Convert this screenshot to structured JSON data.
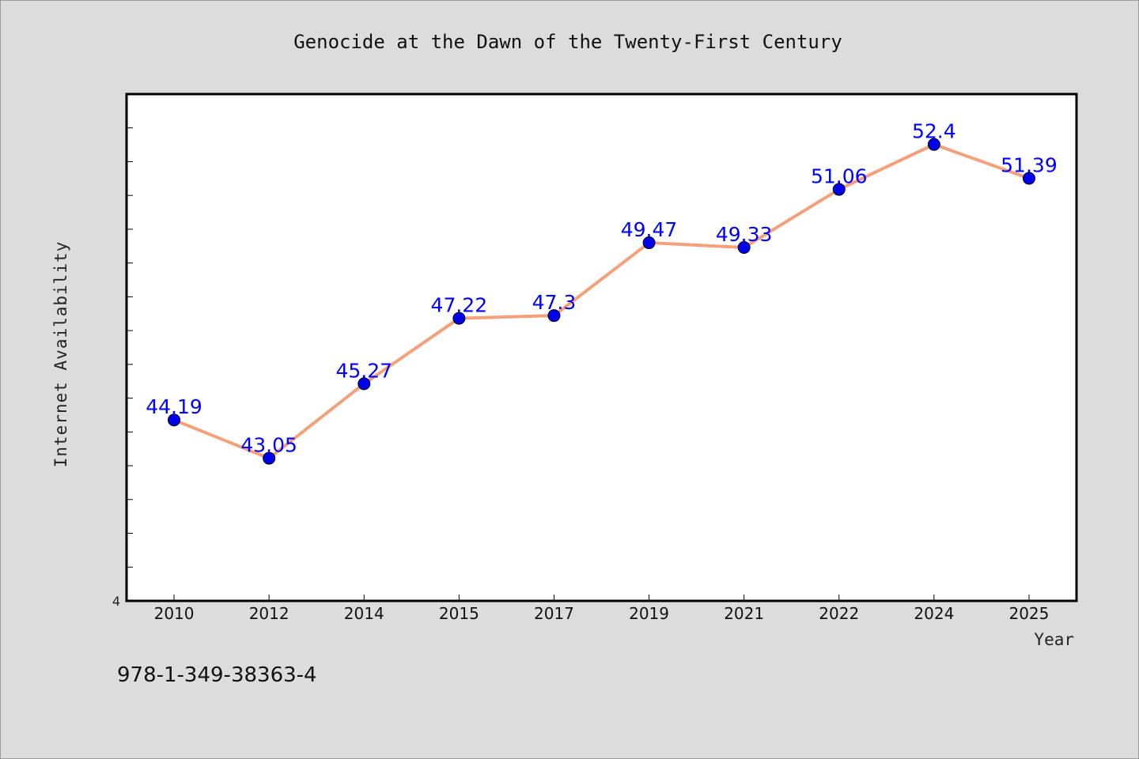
{
  "chart_data": {
    "type": "line",
    "title": "Genocide at the Dawn of the Twenty-First Century",
    "xlabel": "Year",
    "ylabel": "Internet Availability",
    "categories": [
      "2010",
      "2012",
      "2014",
      "2015",
      "2017",
      "2019",
      "2021",
      "2022",
      "2024",
      "2025"
    ],
    "series": [
      {
        "values": [
          44.19,
          43.05,
          45.27,
          47.22,
          47.3,
          49.47,
          49.33,
          51.06,
          52.4,
          51.39
        ],
        "labels": [
          "44.19",
          "43.05",
          "45.27",
          "47.22",
          "47.3",
          "49.47",
          "49.33",
          "51.06",
          "52.4",
          "51.39"
        ]
      }
    ],
    "y_tick_label": "4",
    "ylim": [
      38.8,
      53.9
    ],
    "grid": false,
    "legend": "none",
    "colors": {
      "line": "#f4a07a",
      "marker": "#0000ee",
      "data_label": "#0000ff",
      "plot_background": "#ffffff",
      "page_background": "#dcdcdc"
    }
  },
  "footer": {
    "isbn": "978-1-349-38363-4"
  }
}
